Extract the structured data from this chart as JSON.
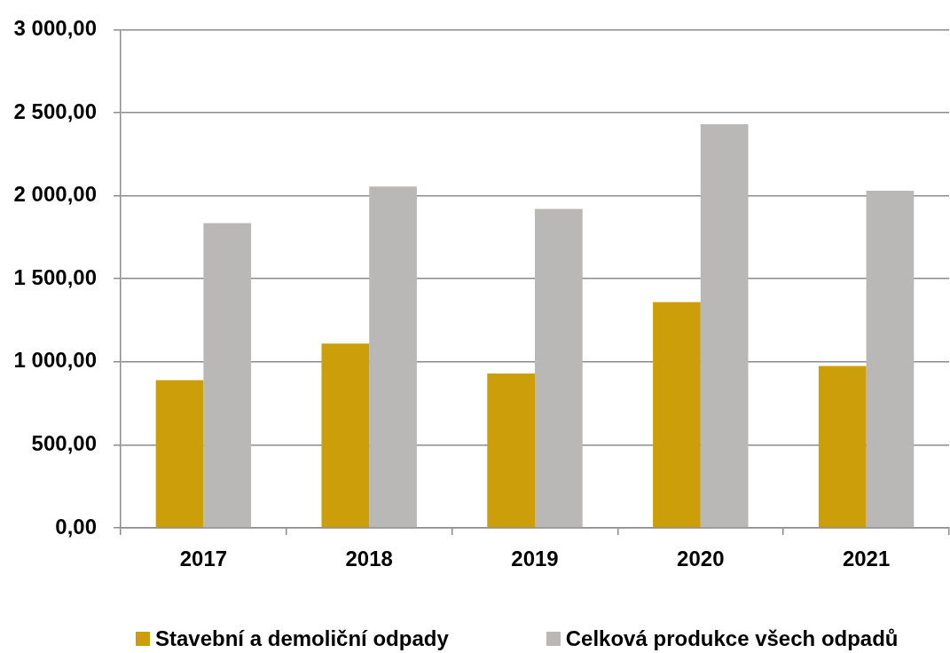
{
  "chart_data": {
    "type": "bar",
    "categories": [
      "2017",
      "2018",
      "2019",
      "2020",
      "2021"
    ],
    "series": [
      {
        "name": "Stavební a demoliční odpady",
        "color": "#cc9e0a",
        "values": [
          890,
          1110,
          930,
          1360,
          975
        ]
      },
      {
        "name": "Celková produkce všech odpadů",
        "color": "#bab7b7",
        "values": [
          1835,
          2055,
          1920,
          2430,
          2030
        ]
      }
    ],
    "ylim": [
      0,
      3000
    ],
    "yticks": [
      {
        "value": 0,
        "label": "0,00"
      },
      {
        "value": 500,
        "label": "500,00"
      },
      {
        "value": 1000,
        "label": "1 000,00"
      },
      {
        "value": 1500,
        "label": "1 500,00"
      },
      {
        "value": 2000,
        "label": "2 000,00"
      },
      {
        "value": 2500,
        "label": "2 500,00"
      },
      {
        "value": 3000,
        "label": "3 000,00"
      }
    ],
    "grid": "y",
    "legend": "bottom"
  }
}
